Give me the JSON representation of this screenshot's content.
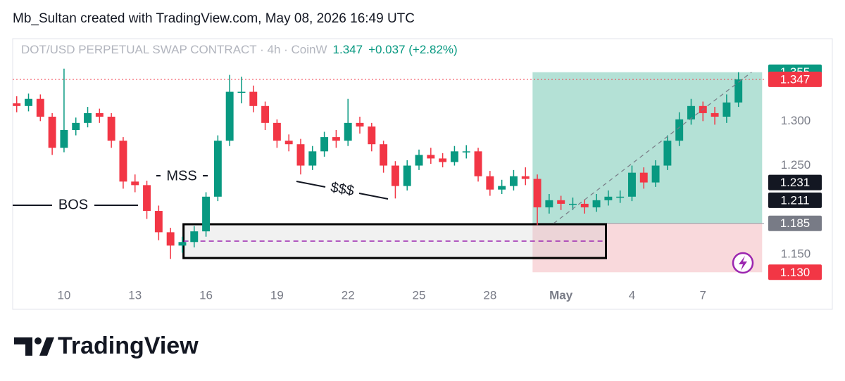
{
  "header": {
    "attribution": "Mb_Sultan created with TradingView.com, May 08, 2026 16:49 UTC",
    "symbol": "DOT/USD PERPETUAL SWAP CONTRACT · 4h · CoinW",
    "last": "1.347",
    "change": "+0.037 (+2.82%)"
  },
  "chart_data": {
    "type": "candlestick",
    "x": [
      8,
      8.5,
      9,
      9.5,
      10,
      10.5,
      11,
      11.5,
      12,
      12.5,
      13,
      13.5,
      14,
      14.5,
      15,
      15.5,
      16,
      16.5,
      17,
      17.5,
      18,
      18.5,
      19,
      19.5,
      20,
      20.5,
      21,
      21.5,
      22,
      22.5,
      23,
      23.5,
      24,
      24.5,
      25,
      25.5,
      26,
      26.5,
      27,
      27.5,
      28,
      28.5,
      29,
      29.5,
      30,
      30.5,
      31,
      31.5,
      32,
      32.5,
      33,
      33.5,
      34,
      34.5,
      35,
      35.5,
      36,
      36.5,
      37,
      37.5,
      38,
      38.5
    ],
    "open": [
      1.32,
      1.317,
      1.325,
      1.305,
      1.27,
      1.29,
      1.298,
      1.309,
      1.305,
      1.278,
      1.232,
      1.228,
      1.199,
      1.175,
      1.16,
      1.164,
      1.176,
      1.215,
      1.278,
      1.333,
      1.333,
      1.317,
      1.298,
      1.278,
      1.274,
      1.25,
      1.266,
      1.282,
      1.278,
      1.298,
      1.294,
      1.274,
      1.25,
      1.227,
      1.25,
      1.262,
      1.258,
      1.254,
      1.266,
      1.266,
      1.238,
      1.223,
      1.227,
      1.238,
      1.235,
      1.203,
      1.211,
      1.207,
      1.207,
      1.203,
      1.211,
      1.215,
      1.215,
      1.242,
      1.231,
      1.25,
      1.278,
      1.302,
      1.317,
      1.309,
      1.305,
      1.321
    ],
    "high": [
      1.328,
      1.331,
      1.33,
      1.309,
      1.359,
      1.304,
      1.316,
      1.314,
      1.309,
      1.282,
      1.24,
      1.233,
      1.205,
      1.18,
      1.17,
      1.182,
      1.22,
      1.284,
      1.352,
      1.35,
      1.34,
      1.322,
      1.302,
      1.285,
      1.28,
      1.272,
      1.288,
      1.29,
      1.325,
      1.305,
      1.298,
      1.278,
      1.255,
      1.256,
      1.268,
      1.27,
      1.264,
      1.272,
      1.273,
      1.27,
      1.244,
      1.234,
      1.245,
      1.248,
      1.24,
      1.218,
      1.216,
      1.214,
      1.212,
      1.218,
      1.222,
      1.222,
      1.25,
      1.248,
      1.256,
      1.284,
      1.31,
      1.325,
      1.322,
      1.316,
      1.33,
      1.355
    ],
    "low": [
      1.31,
      1.311,
      1.3,
      1.262,
      1.265,
      1.284,
      1.293,
      1.298,
      1.27,
      1.224,
      1.22,
      1.19,
      1.166,
      1.145,
      1.152,
      1.158,
      1.17,
      1.21,
      1.272,
      1.32,
      1.31,
      1.29,
      1.27,
      1.266,
      1.24,
      1.245,
      1.26,
      1.27,
      1.272,
      1.286,
      1.266,
      1.242,
      1.213,
      1.222,
      1.245,
      1.252,
      1.248,
      1.25,
      1.258,
      1.232,
      1.216,
      1.218,
      1.222,
      1.228,
      1.183,
      1.196,
      1.2,
      1.2,
      1.196,
      1.198,
      1.205,
      1.208,
      1.21,
      1.224,
      1.226,
      1.245,
      1.272,
      1.296,
      1.3,
      1.296,
      1.298,
      1.316
    ],
    "close": [
      1.317,
      1.325,
      1.305,
      1.27,
      1.29,
      1.298,
      1.309,
      1.305,
      1.278,
      1.232,
      1.228,
      1.199,
      1.175,
      1.16,
      1.164,
      1.176,
      1.215,
      1.278,
      1.333,
      1.333,
      1.317,
      1.298,
      1.278,
      1.274,
      1.25,
      1.266,
      1.282,
      1.278,
      1.298,
      1.294,
      1.274,
      1.25,
      1.227,
      1.25,
      1.262,
      1.258,
      1.254,
      1.266,
      1.266,
      1.238,
      1.223,
      1.227,
      1.238,
      1.235,
      1.203,
      1.211,
      1.207,
      1.207,
      1.203,
      1.211,
      1.215,
      1.215,
      1.242,
      1.231,
      1.25,
      1.278,
      1.302,
      1.317,
      1.309,
      1.305,
      1.321,
      1.347
    ],
    "up_color": "#089981",
    "down_color": "#f23645",
    "xlim": [
      7.83,
      39.58
    ],
    "xticks": [
      10,
      13,
      16,
      19,
      22,
      25,
      28,
      {
        "value": 31,
        "label": "May"
      },
      {
        "value": 34,
        "label": "4"
      },
      {
        "value": 37,
        "label": "7"
      }
    ],
    "ylim": [
      1.116,
      1.373
    ],
    "yticks": [
      {
        "value": 1.15,
        "label": "1.150"
      },
      {
        "value": 1.25,
        "label": "1.250"
      },
      {
        "value": 1.3,
        "label": "1.300"
      }
    ],
    "current_price": 1.347,
    "position": {
      "x": [
        29.8,
        39.5
      ],
      "entry": 1.185,
      "target": 1.355,
      "stop": 1.13,
      "profit_color": "#a7dccf",
      "loss_color": "#f9d9dc"
    },
    "zone": {
      "x": [
        15.05,
        32.9
      ],
      "top": 1.184,
      "bottom": 1.146,
      "mid": 1.165
    },
    "annotations": [
      "BOS",
      "MSS",
      "$$$"
    ],
    "price_labels": [
      {
        "value": 1.355,
        "label": "1.355",
        "color": "#089981"
      },
      {
        "value": 1.347,
        "label": "1.347",
        "color": "#f23645"
      },
      {
        "value": 1.231,
        "label": "1.231",
        "color": "#131722"
      },
      {
        "value": 1.211,
        "label": "1.211",
        "color": "#131722"
      },
      {
        "value": 1.185,
        "label": "1.185",
        "color": "#787b86"
      },
      {
        "value": 1.13,
        "label": "1.130",
        "color": "#f23645"
      }
    ]
  },
  "footer": {
    "brand": "TradingView"
  }
}
